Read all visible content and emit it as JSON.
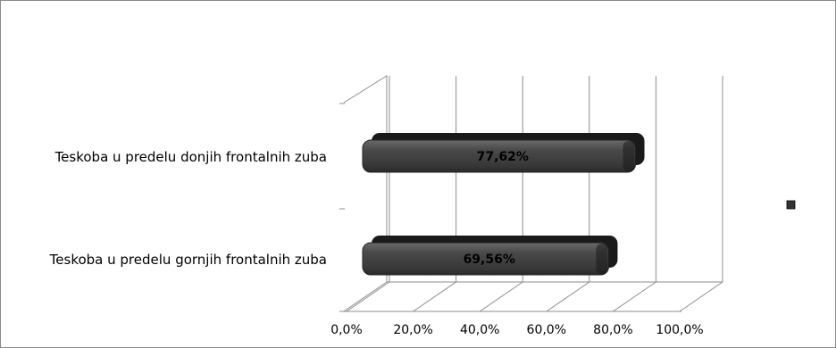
{
  "chart_data": {
    "type": "bar",
    "orientation": "horizontal",
    "style": "3d-cylinder",
    "categories": [
      "Teskoba u predelu donjih frontalnih zuba",
      "Teskoba u predelu gornjih frontalnih zuba"
    ],
    "values": [
      77.62,
      69.56
    ],
    "data_labels": [
      "77,62%",
      "69,56%"
    ],
    "x_ticks": [
      "0,0%",
      "20,0%",
      "40,0%",
      "60,0%",
      "80,0%",
      "100,0%"
    ],
    "xlim": [
      0,
      100
    ],
    "grid": true,
    "legend": "right",
    "title": "",
    "xlabel": "",
    "ylabel": ""
  },
  "colors": {
    "bar_face": "#444444",
    "bar_end": "#1a1a1a",
    "gridline": "#8c8c8c",
    "frame": "#8a8a8a",
    "legend_swatch": "#333333"
  }
}
